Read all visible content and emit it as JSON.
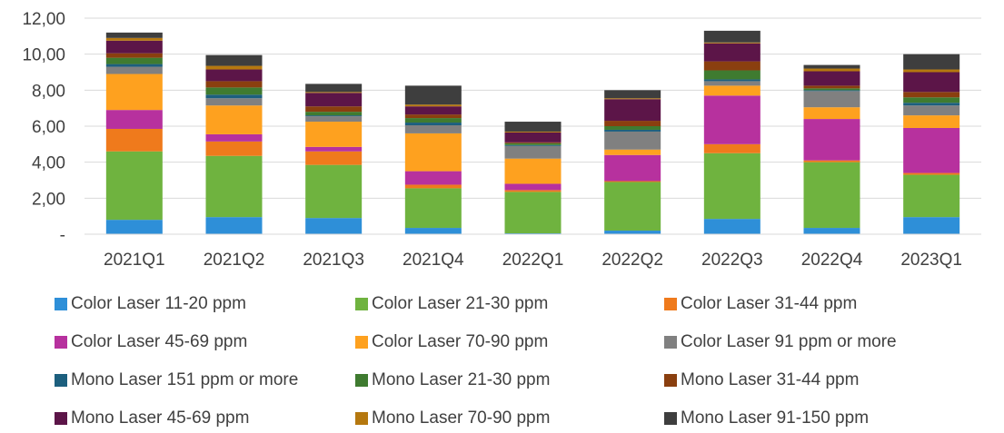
{
  "chart_data": {
    "type": "bar",
    "stacked": true,
    "categories": [
      "2021Q1",
      "2021Q2",
      "2021Q3",
      "2021Q4",
      "2022Q1",
      "2022Q2",
      "2022Q3",
      "2022Q4",
      "2023Q1"
    ],
    "y_ticks": [
      "-",
      "2,00",
      "4,00",
      "6,00",
      "8,00",
      "10,00",
      "12,00"
    ],
    "ylim": [
      0,
      12
    ],
    "grid": true,
    "legend_position": "bottom",
    "series": [
      {
        "name": "Color Laser 11-20 ppm",
        "color": "#2e8fd8",
        "values": [
          0.8,
          0.95,
          0.9,
          0.35,
          0.05,
          0.2,
          0.85,
          0.35,
          0.95
        ]
      },
      {
        "name": "Color Laser 21-30 ppm",
        "color": "#6fb33f",
        "values": [
          3.8,
          3.4,
          2.95,
          2.2,
          2.3,
          2.7,
          3.65,
          3.65,
          2.35
        ]
      },
      {
        "name": "Color Laser 31-44 ppm",
        "color": "#ef7a1c",
        "values": [
          1.25,
          0.8,
          0.75,
          0.2,
          0.1,
          0.05,
          0.5,
          0.1,
          0.1
        ]
      },
      {
        "name": "Color Laser 45-69 ppm",
        "color": "#b7319e",
        "values": [
          1.05,
          0.4,
          0.25,
          0.75,
          0.35,
          1.45,
          2.7,
          2.3,
          2.5
        ]
      },
      {
        "name": "Color Laser 70-90 ppm",
        "color": "#fea11f",
        "values": [
          2.0,
          1.6,
          1.4,
          2.1,
          1.4,
          0.3,
          0.55,
          0.65,
          0.7
        ]
      },
      {
        "name": "Color Laser 91 ppm or more",
        "color": "#808080",
        "values": [
          0.4,
          0.4,
          0.3,
          0.45,
          0.7,
          1.0,
          0.25,
          0.9,
          0.55
        ]
      },
      {
        "name": "Mono Laser 151 ppm or more",
        "color": "#1c5f7e",
        "values": [
          0.15,
          0.2,
          0.05,
          0.15,
          0.05,
          0.1,
          0.1,
          0.05,
          0.15
        ]
      },
      {
        "name": "Mono Laser 21-30 ppm",
        "color": "#3f7b30",
        "values": [
          0.35,
          0.4,
          0.2,
          0.25,
          0.1,
          0.2,
          0.5,
          0.1,
          0.3
        ]
      },
      {
        "name": "Mono Laser 31-44 ppm",
        "color": "#8a3f0f",
        "values": [
          0.25,
          0.35,
          0.3,
          0.2,
          0.05,
          0.3,
          0.5,
          0.15,
          0.3
        ]
      },
      {
        "name": "Mono Laser 45-69 ppm",
        "color": "#5c1548",
        "values": [
          0.7,
          0.65,
          0.75,
          0.45,
          0.55,
          1.2,
          1.0,
          0.8,
          1.1
        ]
      },
      {
        "name": "Mono Laser 70-90 ppm",
        "color": "#b5780f",
        "values": [
          0.15,
          0.2,
          0.05,
          0.1,
          0.05,
          0.05,
          0.05,
          0.15,
          0.15
        ]
      },
      {
        "name": "Mono Laser 91-150 ppm",
        "color": "#3e3e3e",
        "values": [
          0.3,
          0.6,
          0.45,
          1.05,
          0.55,
          0.45,
          0.65,
          0.2,
          0.85
        ]
      }
    ]
  }
}
